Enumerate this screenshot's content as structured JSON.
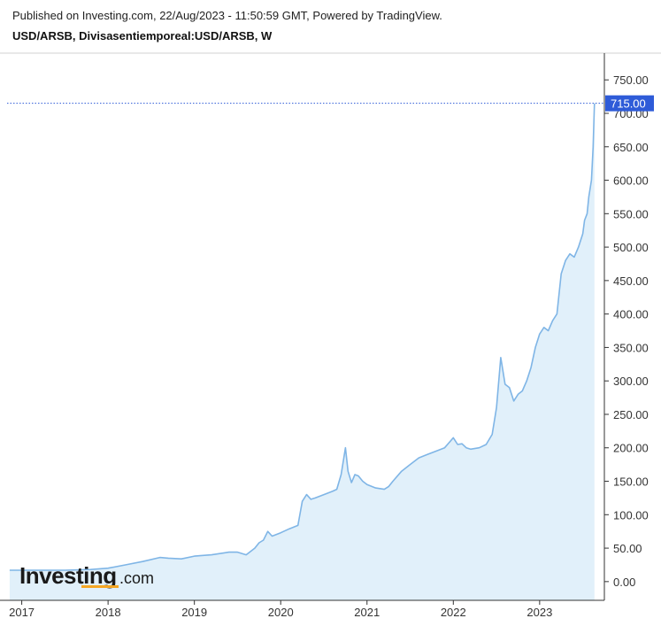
{
  "header": {
    "published": "Published on Investing.com, 22/Aug/2023 - 11:50:59 GMT, Powered by TradingView.",
    "symbol": "USD/ARSB, Divisasentiemporeal:USD/ARSB, W"
  },
  "logo": {
    "main": "Investing",
    "suffix": ".com"
  },
  "colors": {
    "line": "#7fb5e6",
    "area": "#e1f0fa",
    "last_price_bg": "#2e5bd8",
    "dotted": "#2e5bd8",
    "axis": "#333333"
  },
  "chart_data": {
    "type": "area",
    "title": "USD/ARSB, Divisasentiemporeal:USD/ARSB, W",
    "xlabel": "",
    "ylabel": "",
    "ylim": [
      -28,
      790
    ],
    "xlim": [
      2016.83,
      2023.75
    ],
    "y_ticks": [
      "750.00",
      "700.00",
      "650.00",
      "600.00",
      "550.00",
      "500.00",
      "450.00",
      "400.00",
      "350.00",
      "300.00",
      "250.00",
      "200.00",
      "150.00",
      "100.00",
      "50.00",
      "0.00"
    ],
    "y_tick_values": [
      750,
      700,
      650,
      600,
      550,
      500,
      450,
      400,
      350,
      300,
      250,
      200,
      150,
      100,
      50,
      0
    ],
    "x_ticks": [
      "2017",
      "2018",
      "2019",
      "2020",
      "2021",
      "2022",
      "2023"
    ],
    "x_tick_values": [
      2017,
      2018,
      2019,
      2020,
      2021,
      2022,
      2023
    ],
    "last_price": "715.00",
    "last_value": 715,
    "grid": false,
    "series": [
      {
        "x": [
          2016.86,
          2017.2,
          2017.5,
          2017.8,
          2018.0,
          2018.2,
          2018.4,
          2018.6,
          2018.7,
          2018.85,
          2019.0,
          2019.2,
          2019.4,
          2019.5,
          2019.6,
          2019.7,
          2019.75,
          2019.8,
          2019.85,
          2019.9,
          2020.0,
          2020.1,
          2020.2,
          2020.25,
          2020.3,
          2020.35,
          2020.4,
          2020.5,
          2020.6,
          2020.65,
          2020.7,
          2020.75,
          2020.78,
          2020.82,
          2020.86,
          2020.9,
          2020.95,
          2021.0,
          2021.1,
          2021.2,
          2021.25,
          2021.3,
          2021.4,
          2021.5,
          2021.6,
          2021.7,
          2021.8,
          2021.9,
          2022.0,
          2022.05,
          2022.1,
          2022.15,
          2022.2,
          2022.3,
          2022.38,
          2022.45,
          2022.5,
          2022.55,
          2022.6,
          2022.65,
          2022.7,
          2022.75,
          2022.8,
          2022.85,
          2022.9,
          2022.95,
          2023.0,
          2023.05,
          2023.1,
          2023.15,
          2023.2,
          2023.25,
          2023.3,
          2023.35,
          2023.4,
          2023.45,
          2023.5,
          2023.52,
          2023.55,
          2023.57,
          2023.6,
          2023.62,
          2023.635
        ],
        "values": [
          17,
          17,
          17,
          18,
          20,
          25,
          30,
          36,
          35,
          34,
          38,
          40,
          44,
          44,
          40,
          50,
          58,
          62,
          75,
          68,
          73,
          79,
          84,
          120,
          130,
          123,
          125,
          130,
          135,
          138,
          160,
          200,
          165,
          148,
          160,
          158,
          150,
          145,
          140,
          138,
          142,
          150,
          165,
          175,
          185,
          190,
          195,
          200,
          215,
          205,
          206,
          200,
          198,
          200,
          205,
          220,
          260,
          335,
          295,
          290,
          270,
          280,
          285,
          300,
          320,
          350,
          370,
          380,
          375,
          390,
          400,
          460,
          480,
          490,
          485,
          500,
          520,
          540,
          550,
          575,
          600,
          650,
          715
        ]
      }
    ]
  }
}
